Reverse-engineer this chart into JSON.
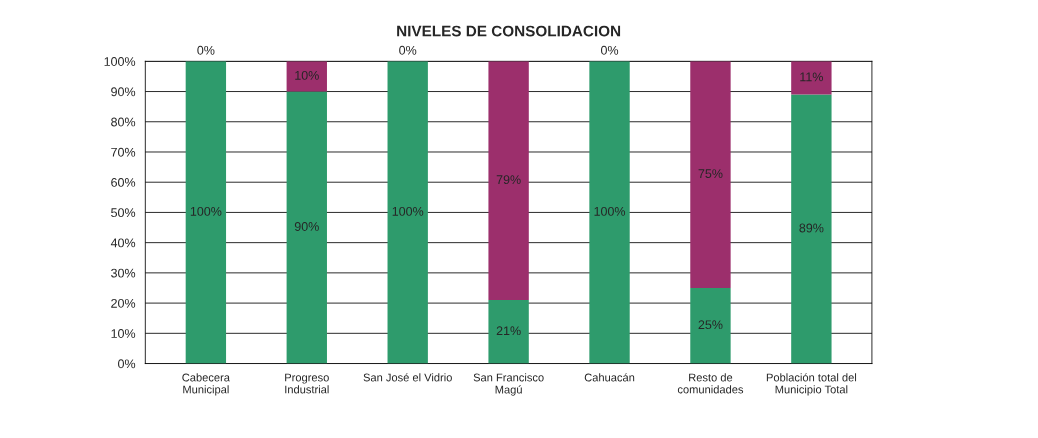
{
  "chart_data": {
    "type": "bar",
    "title": "NIVELES DE CONSOLIDACION",
    "stacked": true,
    "categories": [
      "Cabecera\nMunicipal",
      "Progreso\nIndustrial",
      "San José el Vidrio",
      "San Francisco\nMagú",
      "Cahuacán",
      "Resto de\ncomunidades",
      "Población total del\nMunicipio Total"
    ],
    "series": [
      {
        "color": "#2e9b6c",
        "values": [
          100,
          90,
          100,
          21,
          100,
          25,
          89
        ],
        "value_labels": [
          "100%",
          "90%",
          "100%",
          "21%",
          "100%",
          "25%",
          "89%"
        ]
      },
      {
        "color": "#9c2f6c",
        "values": [
          0,
          10,
          0,
          79,
          0,
          75,
          11
        ],
        "value_labels": [
          "0%",
          "10%",
          "0%",
          "79%",
          "0%",
          "75%",
          "11%"
        ]
      }
    ],
    "ylim": [
      0,
      100
    ],
    "yticks": [
      {
        "value": 0,
        "label": "0%"
      },
      {
        "value": 10,
        "label": "10%"
      },
      {
        "value": 20,
        "label": "20%"
      },
      {
        "value": 30,
        "label": "30%"
      },
      {
        "value": 40,
        "label": "40%"
      },
      {
        "value": 50,
        "label": "50%"
      },
      {
        "value": 60,
        "label": "60%"
      },
      {
        "value": 70,
        "label": "70%"
      },
      {
        "value": 80,
        "label": "80%"
      },
      {
        "value": 90,
        "label": "90%"
      },
      {
        "value": 100,
        "label": "100%"
      }
    ],
    "grid": "y"
  }
}
